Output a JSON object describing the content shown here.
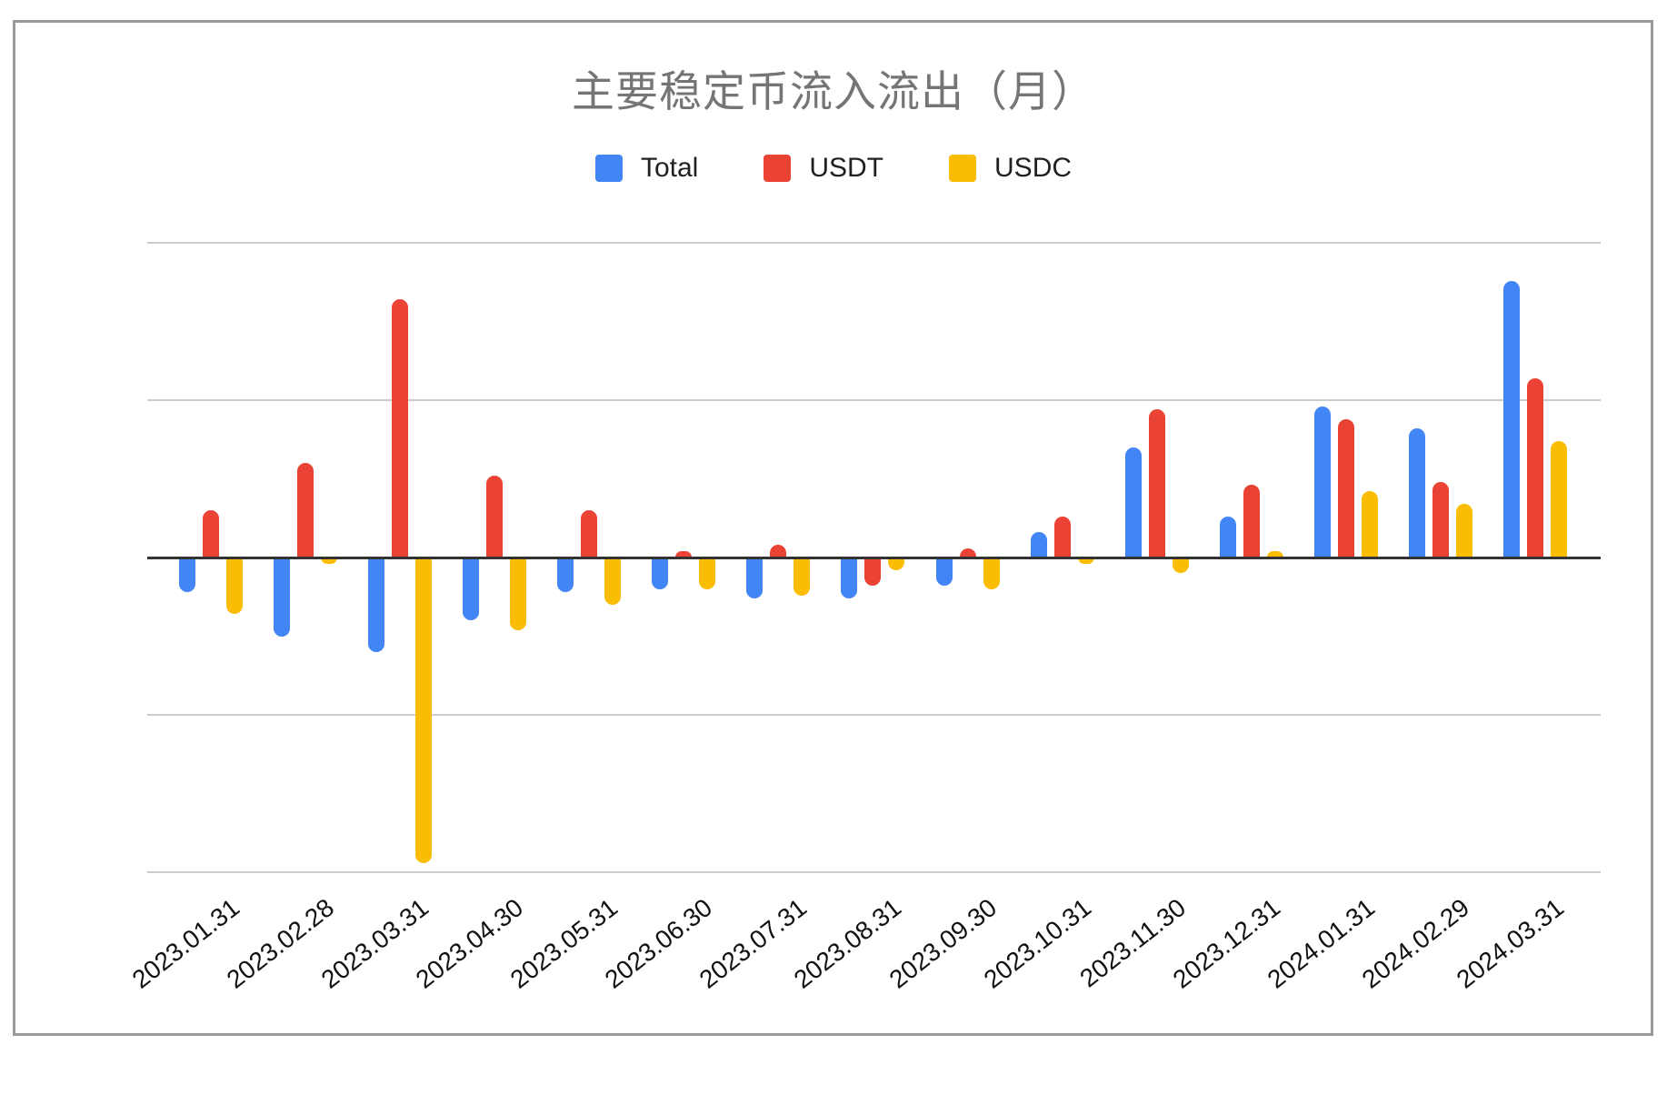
{
  "chart_data": {
    "type": "bar",
    "title": "主要稳定币流入流出（月）",
    "categories": [
      "2023.01.31",
      "2023.02.28",
      "2023.03.31",
      "2023.04.30",
      "2023.05.31",
      "2023.06.30",
      "2023.07.31",
      "2023.08.31",
      "2023.09.30",
      "2023.10.31",
      "2023.11.30",
      "2023.12.31",
      "2024.01.31",
      "2024.02.29",
      "2024.03.31"
    ],
    "series": [
      {
        "name": "Total",
        "color": "#4285F4",
        "values": [
          -11,
          -25,
          -30,
          -20,
          -11,
          -10,
          -13,
          -13,
          -9,
          8,
          35,
          13,
          48,
          41,
          88
        ]
      },
      {
        "name": "USDT",
        "color": "#EA4335",
        "values": [
          15,
          30,
          82,
          26,
          15,
          2,
          4,
          -9,
          3,
          13,
          47,
          23,
          44,
          24,
          57
        ]
      },
      {
        "name": "USDC",
        "color": "#FBBC04",
        "values": [
          -18,
          -2,
          -97,
          -23,
          -15,
          -10,
          -12,
          -4,
          -10,
          -2,
          -5,
          2,
          21,
          17,
          37
        ]
      }
    ],
    "xlabel": "",
    "ylabel": "",
    "ylim": [
      -100,
      100
    ],
    "yticks": [
      100,
      50,
      0,
      -50,
      -100
    ],
    "grid": "horizontal",
    "legend_position": "top"
  },
  "colors": {
    "grid": "#CCCCCC",
    "zero_line": "#333333",
    "title_text": "#757575",
    "axis_text": "#111111",
    "frame_border": "#999999",
    "background": "#FFFFFF"
  }
}
